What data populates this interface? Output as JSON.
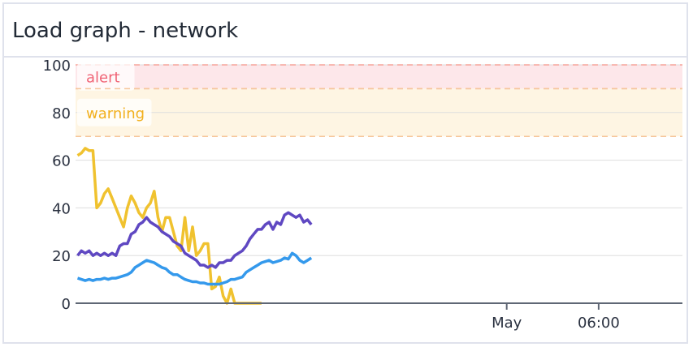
{
  "panel": {
    "title": "Load graph - network"
  },
  "chart_data": {
    "type": "line",
    "title": "Load graph - network",
    "xlabel": "",
    "ylabel": "",
    "ylim": [
      0,
      100
    ],
    "yticks": [
      "0",
      "20",
      "40",
      "60",
      "80",
      "100"
    ],
    "xticks": [
      {
        "label": "May",
        "time": "05-01 00:00"
      },
      {
        "label": "06:00",
        "time": "05-01 06:00"
      }
    ],
    "xlim": [
      "04-30 19:52",
      "05-01 11:28"
    ],
    "grid": true,
    "thresholds": [
      {
        "label": "alert",
        "from": 90,
        "to": 100,
        "color": "#fde7ea",
        "text_color": "#f06476",
        "line_color": "#f5a39a"
      },
      {
        "label": "warning",
        "from": 70,
        "to": 90,
        "color": "#fef5e3",
        "text_color": "#f2b01e",
        "line_color": "#f6c69a"
      }
    ],
    "time_start": "04-30 20:00",
    "time_step_minutes": 15,
    "series": [
      {
        "color": "#f0c22f",
        "values": [
          62,
          63,
          65,
          64,
          64,
          40,
          42,
          46,
          48,
          44,
          40,
          36,
          32,
          40,
          45,
          42,
          38,
          36,
          40,
          42,
          47,
          36,
          30,
          36,
          36,
          30,
          24,
          22,
          36,
          22,
          32,
          20,
          22,
          25,
          25,
          6,
          7,
          11,
          3,
          0,
          6,
          0,
          0,
          0,
          0,
          0,
          0,
          0,
          0,
          null,
          null,
          null,
          null,
          null,
          null,
          null,
          null,
          null,
          null,
          null,
          null,
          null
        ]
      },
      {
        "color": "#5f48c2",
        "values": [
          20,
          22,
          21,
          22,
          20,
          21,
          20,
          21,
          20,
          21,
          20,
          24,
          25,
          25,
          29,
          30,
          33,
          34,
          36,
          34,
          33,
          32,
          30,
          29,
          28,
          26,
          25,
          24,
          21,
          20,
          19,
          18,
          16,
          16,
          15,
          16,
          15,
          17,
          17,
          18,
          18,
          20,
          21,
          22,
          24,
          27,
          29,
          31,
          31,
          33,
          34,
          31,
          34,
          33,
          37,
          38,
          37,
          36,
          37,
          34,
          35,
          33
        ]
      },
      {
        "color": "#3499ec",
        "values": [
          10.5,
          10,
          9.5,
          10,
          9.5,
          10,
          10,
          10.5,
          10,
          10.5,
          10.5,
          11,
          11.5,
          12,
          13,
          15,
          16,
          17,
          18,
          17.5,
          17,
          16,
          15,
          14.5,
          13,
          12,
          12,
          11,
          10,
          9.5,
          9,
          9,
          8.5,
          8.5,
          8,
          8,
          8,
          8,
          8.5,
          9,
          10,
          10,
          10.5,
          11,
          13,
          14,
          15,
          16,
          17,
          17.5,
          18,
          17,
          17.5,
          18,
          19,
          18.5,
          21,
          20,
          18,
          17,
          18,
          19
        ]
      }
    ]
  }
}
